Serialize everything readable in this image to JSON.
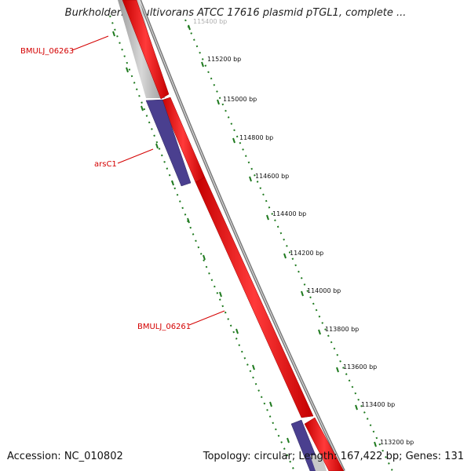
{
  "title": "Burkholderia multivorans ATCC 17616 plasmid pTGL1, complete ...",
  "accession_text": "Accession: NC_010802",
  "summary_text": "Topology: circular; Length: 167,422 bp; Genes: 131",
  "colors": {
    "forward_cds": "#ff1a1a",
    "reverse_cds": "#4a3f8f",
    "gene_other": "#bdbdbd",
    "backbone": "#7a7a7a",
    "ticks": "#1f7a1f",
    "gene_label": "#d40000"
  },
  "scale_labels": [
    {
      "text": "115400 bp"
    },
    {
      "text": "115200 bp"
    },
    {
      "text": "115000 bp"
    },
    {
      "text": "114800 bp"
    },
    {
      "text": "114600 bp"
    },
    {
      "text": "114400 bp"
    },
    {
      "text": "114200 bp"
    },
    {
      "text": "114000 bp"
    },
    {
      "text": "113800 bp"
    },
    {
      "text": "113600 bp"
    },
    {
      "text": "113400 bp"
    },
    {
      "text": "113200 bp"
    }
  ],
  "gene_labels": [
    {
      "text": "BMULJ_06263"
    },
    {
      "text": "arsC1"
    },
    {
      "text": "BMULJ_06261"
    }
  ]
}
